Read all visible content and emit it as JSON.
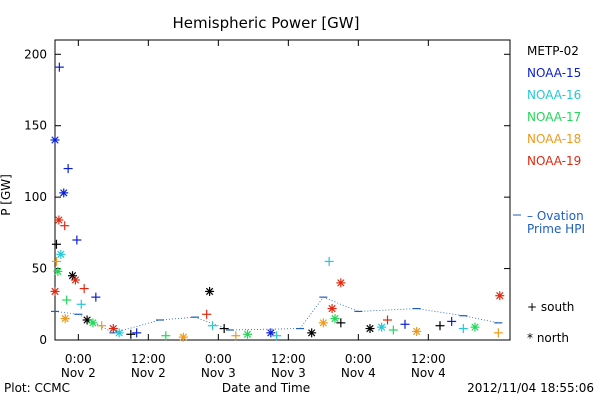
{
  "footer": {
    "plot_credit": "Plot: CCMC",
    "timestamp": "2012/11/04 18:55:06"
  },
  "side_legend": {
    "ovation_line1": "– Ovation",
    "ovation_line2": "Prime HPI",
    "ovation_color": "#1f5fbf",
    "south_label": "+ south",
    "north_label": "* north"
  },
  "chart_data": {
    "type": "scatter",
    "title": "Hemispheric Power [GW]",
    "xlabel": "Date and Time",
    "ylabel": "P [GW]",
    "ylim": [
      0,
      210
    ],
    "yticks": [
      0,
      50,
      100,
      150,
      200
    ],
    "xlim": [
      "2012-11-01T20:00",
      "2012-11-05T02:00"
    ],
    "xticks": [
      {
        "time": "2012-11-02T00:00",
        "line1": "0:00",
        "line2": "Nov 2"
      },
      {
        "time": "2012-11-02T12:00",
        "line1": "12:00",
        "line2": "Nov 2"
      },
      {
        "time": "2012-11-03T00:00",
        "line1": "0:00",
        "line2": "Nov 3"
      },
      {
        "time": "2012-11-03T12:00",
        "line1": "12:00",
        "line2": "Nov 3"
      },
      {
        "time": "2012-11-04T00:00",
        "line1": "0:00",
        "line2": "Nov 4"
      },
      {
        "time": "2012-11-04T12:00",
        "line1": "12:00",
        "line2": "Nov 4"
      }
    ],
    "grid": false,
    "legend_position": "right",
    "series": [
      {
        "name": "METP-02",
        "color": "#000000",
        "points": [
          {
            "t": "2012-11-01T20:15",
            "v": 67,
            "h": "south"
          },
          {
            "t": "2012-11-01T23:00",
            "v": 45,
            "h": "north"
          },
          {
            "t": "2012-11-02T01:30",
            "v": 14,
            "h": "north"
          },
          {
            "t": "2012-11-02T09:00",
            "v": 4,
            "h": "south"
          },
          {
            "t": "2012-11-02T22:30",
            "v": 34,
            "h": "north"
          },
          {
            "t": "2012-11-03T01:00",
            "v": 8,
            "h": "south"
          },
          {
            "t": "2012-11-03T16:00",
            "v": 5,
            "h": "north"
          },
          {
            "t": "2012-11-03T21:00",
            "v": 12,
            "h": "south"
          },
          {
            "t": "2012-11-04T02:00",
            "v": 8,
            "h": "north"
          },
          {
            "t": "2012-11-04T14:00",
            "v": 10,
            "h": "south"
          }
        ]
      },
      {
        "name": "NOAA-15",
        "color": "#0a1fd4",
        "points": [
          {
            "t": "2012-11-01T20:00",
            "v": 140,
            "h": "north"
          },
          {
            "t": "2012-11-01T20:45",
            "v": 191,
            "h": "south"
          },
          {
            "t": "2012-11-01T21:30",
            "v": 103,
            "h": "north"
          },
          {
            "t": "2012-11-01T22:15",
            "v": 120,
            "h": "south"
          },
          {
            "t": "2012-11-01T23:45",
            "v": 70,
            "h": "south"
          },
          {
            "t": "2012-11-02T03:00",
            "v": 30,
            "h": "south"
          },
          {
            "t": "2012-11-02T10:00",
            "v": 5,
            "h": "south"
          },
          {
            "t": "2012-11-03T09:00",
            "v": 5,
            "h": "north"
          },
          {
            "t": "2012-11-04T08:00",
            "v": 11,
            "h": "south"
          },
          {
            "t": "2012-11-04T16:00",
            "v": 13,
            "h": "south"
          }
        ]
      },
      {
        "name": "NOAA-16",
        "color": "#22c8d8",
        "points": [
          {
            "t": "2012-11-01T21:00",
            "v": 60,
            "h": "north"
          },
          {
            "t": "2012-11-02T00:30",
            "v": 25,
            "h": "south"
          },
          {
            "t": "2012-11-02T07:00",
            "v": 5,
            "h": "north"
          },
          {
            "t": "2012-11-02T23:00",
            "v": 10,
            "h": "south"
          },
          {
            "t": "2012-11-03T10:00",
            "v": 3,
            "h": "south"
          },
          {
            "t": "2012-11-03T19:00",
            "v": 55,
            "h": "south"
          },
          {
            "t": "2012-11-04T04:00",
            "v": 9,
            "h": "north"
          },
          {
            "t": "2012-11-04T18:00",
            "v": 8,
            "h": "south"
          }
        ]
      },
      {
        "name": "NOAA-17",
        "color": "#22d858",
        "points": [
          {
            "t": "2012-11-01T20:30",
            "v": 48,
            "h": "north"
          },
          {
            "t": "2012-11-01T22:00",
            "v": 28,
            "h": "south"
          },
          {
            "t": "2012-11-02T02:30",
            "v": 12,
            "h": "north"
          },
          {
            "t": "2012-11-02T15:00",
            "v": 3,
            "h": "south"
          },
          {
            "t": "2012-11-03T05:00",
            "v": 4,
            "h": "north"
          },
          {
            "t": "2012-11-03T20:00",
            "v": 15,
            "h": "north"
          },
          {
            "t": "2012-11-04T06:00",
            "v": 7,
            "h": "south"
          },
          {
            "t": "2012-11-04T20:00",
            "v": 9,
            "h": "north"
          }
        ]
      },
      {
        "name": "NOAA-18",
        "color": "#f09a18",
        "points": [
          {
            "t": "2012-11-01T20:15",
            "v": 55,
            "h": "south"
          },
          {
            "t": "2012-11-01T21:45",
            "v": 15,
            "h": "north"
          },
          {
            "t": "2012-11-02T04:00",
            "v": 10,
            "h": "south"
          },
          {
            "t": "2012-11-02T18:00",
            "v": 2,
            "h": "north"
          },
          {
            "t": "2012-11-03T03:00",
            "v": 3,
            "h": "south"
          },
          {
            "t": "2012-11-03T18:00",
            "v": 12,
            "h": "north"
          },
          {
            "t": "2012-11-04T10:00",
            "v": 6,
            "h": "north"
          },
          {
            "t": "2012-11-05T00:00",
            "v": 5,
            "h": "south"
          }
        ]
      },
      {
        "name": "NOAA-19",
        "color": "#e02810",
        "points": [
          {
            "t": "2012-11-01T20:00",
            "v": 34,
            "h": "north"
          },
          {
            "t": "2012-11-01T20:40",
            "v": 84,
            "h": "north"
          },
          {
            "t": "2012-11-01T21:40",
            "v": 80,
            "h": "south"
          },
          {
            "t": "2012-11-01T23:30",
            "v": 42,
            "h": "north"
          },
          {
            "t": "2012-11-02T01:00",
            "v": 36,
            "h": "south"
          },
          {
            "t": "2012-11-02T06:00",
            "v": 8,
            "h": "north"
          },
          {
            "t": "2012-11-02T22:00",
            "v": 18,
            "h": "south"
          },
          {
            "t": "2012-11-03T19:30",
            "v": 22,
            "h": "north"
          },
          {
            "t": "2012-11-03T21:00",
            "v": 40,
            "h": "north"
          },
          {
            "t": "2012-11-04T05:00",
            "v": 14,
            "h": "south"
          },
          {
            "t": "2012-11-05T00:15",
            "v": 31,
            "h": "north"
          }
        ]
      }
    ],
    "ovation_hpi": [
      {
        "t": "2012-11-01T20:00",
        "v": 20
      },
      {
        "t": "2012-11-02T00:00",
        "v": 18
      },
      {
        "t": "2012-11-02T06:00",
        "v": 5
      },
      {
        "t": "2012-11-02T14:00",
        "v": 14
      },
      {
        "t": "2012-11-02T20:00",
        "v": 16
      },
      {
        "t": "2012-11-03T02:00",
        "v": 7
      },
      {
        "t": "2012-11-03T14:00",
        "v": 8
      },
      {
        "t": "2012-11-03T18:00",
        "v": 30
      },
      {
        "t": "2012-11-04T00:00",
        "v": 20
      },
      {
        "t": "2012-11-04T10:00",
        "v": 22
      },
      {
        "t": "2012-11-04T18:00",
        "v": 17
      },
      {
        "t": "2012-11-05T00:00",
        "v": 12
      }
    ]
  }
}
